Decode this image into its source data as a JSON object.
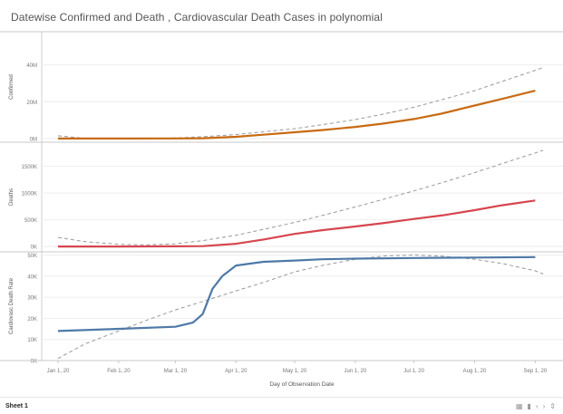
{
  "chart_data": {
    "type": "line",
    "title": "Datewise Confirmed and Death , Cardiovascular Death Cases in polynomial",
    "xlabel": "Day of Observation Date",
    "x_ticks": [
      "Jan 1, 20",
      "Feb 1, 20",
      "Mar 1, 20",
      "Apr 1, 20",
      "May 1, 20",
      "Jun 1, 20",
      "Jul 1, 20",
      "Aug 1, 20",
      "Sep 1, 20"
    ],
    "x_range": [
      "2020-01-01",
      "2020-09-05"
    ],
    "grid": true,
    "panels": [
      {
        "ylabel": "Confirmed",
        "yticks": [
          "0M",
          "20M",
          "40M"
        ],
        "ylim": [
          -2000000,
          58000000
        ],
        "series": [
          {
            "color": "#c86a12",
            "points": [
              [
                "2020-01-01",
                0
              ],
              [
                "2020-02-01",
                12000
              ],
              [
                "2020-03-01",
                90000
              ],
              [
                "2020-03-15",
                170000
              ],
              [
                "2020-04-01",
                950000
              ],
              [
                "2020-04-15",
                2100000
              ],
              [
                "2020-05-01",
                3400000
              ],
              [
                "2020-05-15",
                4600000
              ],
              [
                "2020-06-01",
                6300000
              ],
              [
                "2020-06-15",
                8100000
              ],
              [
                "2020-07-01",
                10600000
              ],
              [
                "2020-07-15",
                13500000
              ],
              [
                "2020-08-01",
                17900000
              ],
              [
                "2020-08-15",
                21500000
              ],
              [
                "2020-09-01",
                26000000
              ]
            ]
          }
        ],
        "trend": {
          "color": "#999999",
          "style": "dashed",
          "points": [
            [
              "2020-01-01",
              1500000
            ],
            [
              "2020-01-15",
              100000
            ],
            [
              "2020-02-01",
              -300000
            ],
            [
              "2020-02-15",
              -200000
            ],
            [
              "2020-03-01",
              300000
            ],
            [
              "2020-03-15",
              1000000
            ],
            [
              "2020-04-01",
              2200000
            ],
            [
              "2020-04-15",
              3600000
            ],
            [
              "2020-05-01",
              5400000
            ],
            [
              "2020-05-15",
              7500000
            ],
            [
              "2020-06-01",
              10300000
            ],
            [
              "2020-06-15",
              13200000
            ],
            [
              "2020-07-01",
              17000000
            ],
            [
              "2020-07-15",
              21000000
            ],
            [
              "2020-08-01",
              26000000
            ],
            [
              "2020-08-15",
              31000000
            ],
            [
              "2020-09-01",
              37000000
            ],
            [
              "2020-09-05",
              38500000
            ]
          ]
        }
      },
      {
        "ylabel": "Deaths",
        "yticks": [
          "0K",
          "500K",
          "1000K",
          "1500K"
        ],
        "ylim": [
          -100000,
          1950000
        ],
        "series": [
          {
            "color": "#d6464f",
            "points": [
              [
                "2020-01-01",
                20
              ],
              [
                "2020-02-01",
                300
              ],
              [
                "2020-03-01",
                3000
              ],
              [
                "2020-03-15",
                7000
              ],
              [
                "2020-04-01",
                51000
              ],
              [
                "2020-04-15",
                130000
              ],
              [
                "2020-05-01",
                235000
              ],
              [
                "2020-05-15",
                305000
              ],
              [
                "2020-06-01",
                375000
              ],
              [
                "2020-06-15",
                435000
              ],
              [
                "2020-07-01",
                515000
              ],
              [
                "2020-07-15",
                580000
              ],
              [
                "2020-08-01",
                680000
              ],
              [
                "2020-08-15",
                770000
              ],
              [
                "2020-09-01",
                860000
              ]
            ]
          }
        ],
        "trend": {
          "color": "#999999",
          "style": "dashed",
          "points": [
            [
              "2020-01-01",
              170000
            ],
            [
              "2020-01-15",
              90000
            ],
            [
              "2020-02-01",
              40000
            ],
            [
              "2020-02-15",
              30000
            ],
            [
              "2020-03-01",
              50000
            ],
            [
              "2020-03-15",
              110000
            ],
            [
              "2020-04-01",
              210000
            ],
            [
              "2020-04-15",
              320000
            ],
            [
              "2020-05-01",
              450000
            ],
            [
              "2020-05-15",
              580000
            ],
            [
              "2020-06-01",
              740000
            ],
            [
              "2020-06-15",
              880000
            ],
            [
              "2020-07-01",
              1040000
            ],
            [
              "2020-07-15",
              1190000
            ],
            [
              "2020-08-01",
              1380000
            ],
            [
              "2020-08-15",
              1550000
            ],
            [
              "2020-09-01",
              1750000
            ],
            [
              "2020-09-05",
              1800000
            ]
          ]
        }
      },
      {
        "ylabel": "Cardiovasc Death Rate",
        "yticks": [
          "0K",
          "10K",
          "20K",
          "30K",
          "40K",
          "50K"
        ],
        "ylim": [
          0,
          51500
        ],
        "series": [
          {
            "color": "#4e79a7",
            "points": [
              [
                "2020-01-01",
                14000
              ],
              [
                "2020-02-01",
                15000
              ],
              [
                "2020-03-01",
                16000
              ],
              [
                "2020-03-10",
                18000
              ],
              [
                "2020-03-15",
                22000
              ],
              [
                "2020-03-20",
                34000
              ],
              [
                "2020-03-25",
                40000
              ],
              [
                "2020-04-01",
                45000
              ],
              [
                "2020-04-15",
                46800
              ],
              [
                "2020-05-01",
                47400
              ],
              [
                "2020-05-15",
                48000
              ],
              [
                "2020-06-01",
                48300
              ],
              [
                "2020-07-01",
                48600
              ],
              [
                "2020-08-01",
                48800
              ],
              [
                "2020-09-01",
                49000
              ]
            ]
          }
        ],
        "trend": {
          "color": "#999999",
          "style": "dashed",
          "points": [
            [
              "2020-01-01",
              1000
            ],
            [
              "2020-01-15",
              8000
            ],
            [
              "2020-02-01",
              14000
            ],
            [
              "2020-02-15",
              19000
            ],
            [
              "2020-03-01",
              24000
            ],
            [
              "2020-03-15",
              28000
            ],
            [
              "2020-04-01",
              33000
            ],
            [
              "2020-04-15",
              37000
            ],
            [
              "2020-05-01",
              42000
            ],
            [
              "2020-05-15",
              45000
            ],
            [
              "2020-06-01",
              48000
            ],
            [
              "2020-06-15",
              49500
            ],
            [
              "2020-07-01",
              50000
            ],
            [
              "2020-07-15",
              49500
            ],
            [
              "2020-08-01",
              48000
            ],
            [
              "2020-08-15",
              46000
            ],
            [
              "2020-09-01",
              42500
            ],
            [
              "2020-09-05",
              41000
            ]
          ]
        }
      }
    ]
  },
  "footer": {
    "sheet_tab": "Sheet 1"
  }
}
